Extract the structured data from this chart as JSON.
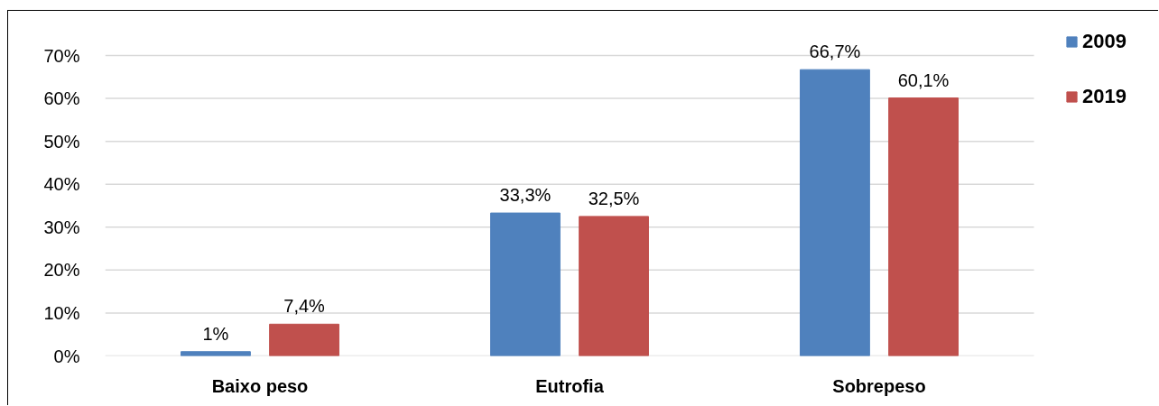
{
  "chart_data": {
    "type": "bar",
    "categories": [
      "Baixo peso",
      "Eutrofia",
      "Sobrepeso"
    ],
    "series": [
      {
        "name": "2009",
        "color": "#4f81bd",
        "values": [
          1,
          33.3,
          66.7
        ],
        "value_labels": [
          "1%",
          "33,3%",
          "66,7%"
        ]
      },
      {
        "name": "2019",
        "color": "#c0504d",
        "values": [
          7.4,
          32.5,
          60.1
        ],
        "value_labels": [
          "7,4%",
          "32,5%",
          "60,1%"
        ]
      }
    ],
    "ylim": [
      0,
      70
    ],
    "yticks": [
      {
        "value": 0,
        "label": "0%"
      },
      {
        "value": 10,
        "label": "10%"
      },
      {
        "value": 20,
        "label": "20%"
      },
      {
        "value": 30,
        "label": "30%"
      },
      {
        "value": 40,
        "label": "40%"
      },
      {
        "value": 50,
        "label": "50%"
      },
      {
        "value": 60,
        "label": "60%"
      },
      {
        "value": 70,
        "label": "70%"
      }
    ],
    "grid": "y",
    "legend": "top right"
  }
}
